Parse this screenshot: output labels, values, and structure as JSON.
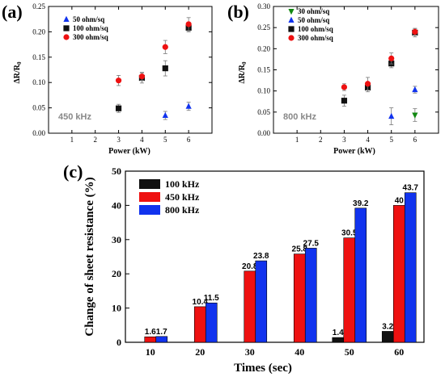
{
  "colors": {
    "red": "#ee1111",
    "black": "#111111",
    "blue": "#1133ee",
    "green": "#118811",
    "gray": "#888888"
  },
  "chart_data": [
    {
      "panel": "(a)",
      "type": "scatter",
      "xlabel": "Power (kW)",
      "ylabel": "ΔR/R0",
      "xlim": [
        0,
        7
      ],
      "ylim": [
        0,
        0.25
      ],
      "xticks": [
        1,
        2,
        3,
        4,
        5,
        6
      ],
      "yticks": [
        0.0,
        0.05,
        0.1,
        0.15,
        0.2,
        0.25
      ],
      "annotation": "450 kHz",
      "legend_position": "top-left",
      "series": [
        {
          "name": "50 ohm/sq",
          "marker": "triangle-up",
          "color": "#1133ee",
          "x": [
            5,
            6
          ],
          "y": [
            0.035,
            0.053
          ],
          "err": [
            0.008,
            0.008
          ]
        },
        {
          "name": "100 ohm/sq",
          "marker": "square",
          "color": "#111111",
          "x": [
            3,
            4,
            5,
            6
          ],
          "y": [
            0.049,
            0.109,
            0.128,
            0.208
          ],
          "err": [
            0.008,
            0.01,
            0.015,
            0.008
          ]
        },
        {
          "name": "300 ohm/sq",
          "marker": "circle",
          "color": "#ee1111",
          "x": [
            3,
            4,
            5,
            6
          ],
          "y": [
            0.104,
            0.112,
            0.17,
            0.215
          ],
          "err": [
            0.01,
            0.008,
            0.013,
            0.013
          ]
        }
      ]
    },
    {
      "panel": "(b)",
      "type": "scatter",
      "xlabel": "Power (kW)",
      "ylabel": "ΔR/R0",
      "xlim": [
        0,
        7
      ],
      "ylim": [
        0,
        0.3
      ],
      "xticks": [
        1,
        2,
        3,
        4,
        5,
        6
      ],
      "yticks": [
        0.0,
        0.05,
        0.1,
        0.15,
        0.2,
        0.25,
        0.3
      ],
      "annotation": "800 kHz",
      "legend_position": "top-left",
      "series": [
        {
          "name": "30 ohm/sq",
          "marker": "triangle-down",
          "color": "#118811",
          "x": [
            6
          ],
          "y": [
            0.043
          ],
          "err": [
            0.015
          ]
        },
        {
          "name": "50 ohm/sq",
          "marker": "triangle-up",
          "color": "#1133ee",
          "x": [
            5,
            6
          ],
          "y": [
            0.04,
            0.103
          ],
          "err": [
            0.02,
            0.008
          ]
        },
        {
          "name": "100 ohm/sq",
          "marker": "square",
          "color": "#111111",
          "x": [
            3,
            4,
            5,
            6
          ],
          "y": [
            0.077,
            0.108,
            0.165,
            0.238
          ],
          "err": [
            0.013,
            0.01,
            0.01,
            0.01
          ]
        },
        {
          "name": "300 ohm/sq",
          "marker": "circle",
          "color": "#ee1111",
          "x": [
            3,
            4,
            5,
            6
          ],
          "y": [
            0.109,
            0.117,
            0.177,
            0.24
          ],
          "err": [
            0.008,
            0.015,
            0.013,
            0.008
          ]
        }
      ]
    },
    {
      "panel": "(c)",
      "type": "bar",
      "xlabel": "Times (sec)",
      "ylabel": "Change of sheet resistance (%)",
      "categories": [
        "10",
        "20",
        "30",
        "40",
        "50",
        "60"
      ],
      "ylim": [
        0,
        50
      ],
      "yticks": [
        0,
        10,
        20,
        30,
        40,
        50
      ],
      "legend_position": "top-left",
      "series": [
        {
          "name": "100 kHz",
          "color": "#111111",
          "values": [
            null,
            null,
            null,
            null,
            1.4,
            3.2
          ],
          "labels": [
            "",
            "",
            "",
            "",
            "1.4",
            "3.2"
          ]
        },
        {
          "name": "450 kHz",
          "color": "#ee1111",
          "values": [
            1.6,
            10.4,
            20.8,
            25.8,
            30.5,
            40
          ],
          "labels": [
            "1.6",
            "10.4",
            "20.8",
            "25.8",
            "30.5",
            "40"
          ]
        },
        {
          "name": "800 kHz",
          "color": "#1133ee",
          "values": [
            1.7,
            11.5,
            23.8,
            27.5,
            39.2,
            43.7
          ],
          "labels": [
            "1.7",
            "11.5",
            "23.8",
            "27.5",
            "39.2",
            "43.7"
          ]
        }
      ]
    }
  ]
}
